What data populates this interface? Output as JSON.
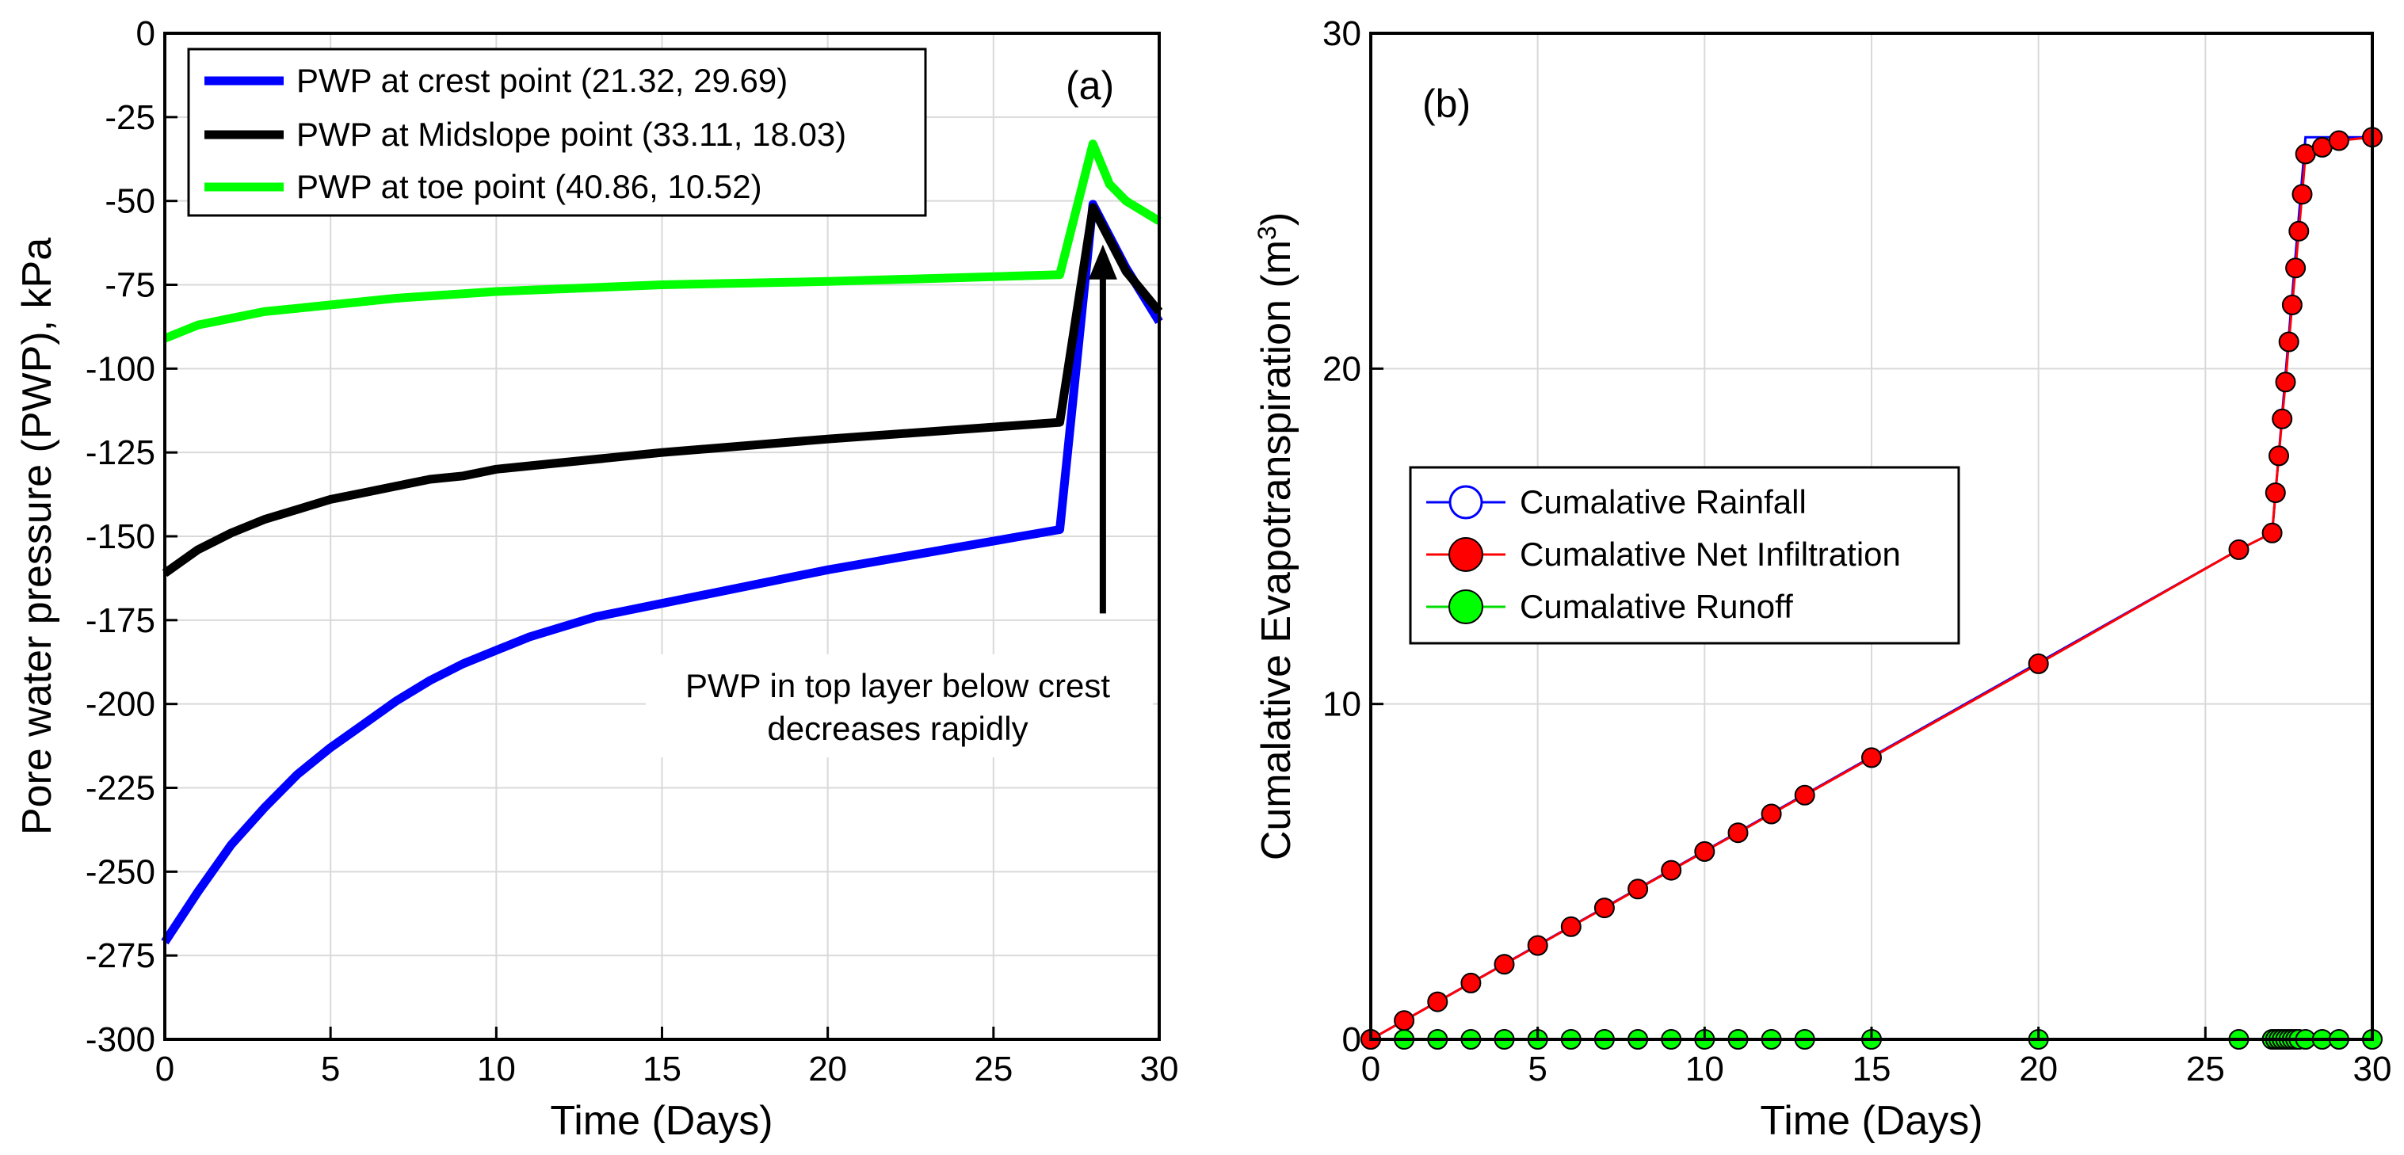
{
  "chart_data": [
    {
      "type": "line",
      "panel_label": "(a)",
      "xlabel": "Time (Days)",
      "ylabel": "Pore water pressure (PWP), kPa",
      "xlim": [
        0,
        30
      ],
      "ylim": [
        -300,
        0
      ],
      "xticks": [
        0,
        5,
        10,
        15,
        20,
        25,
        30
      ],
      "yticks": [
        0,
        -25,
        -50,
        -75,
        -100,
        -125,
        -150,
        -175,
        -200,
        -225,
        -250,
        -275,
        -300
      ],
      "grid": true,
      "legend_position": "top-left",
      "series": [
        {
          "name": "PWP at crest point (21.32, 29.69)",
          "color": "#0000ff",
          "x": [
            0,
            1,
            2,
            3,
            4,
            5,
            6,
            7,
            8,
            9,
            10,
            11,
            12,
            13,
            14,
            15,
            20,
            27,
            28,
            29,
            30
          ],
          "y": [
            -271,
            -256,
            -242,
            -231,
            -221,
            -213,
            -206,
            -199,
            -193,
            -188,
            -184,
            -180,
            -177,
            -174,
            -172,
            -170,
            -160,
            -148,
            -51,
            -70,
            -86
          ]
        },
        {
          "name": "PWP at Midslope point (33.11, 18.03)",
          "color": "#000000",
          "x": [
            0,
            1,
            2,
            3,
            4,
            5,
            6,
            7,
            8,
            9,
            10,
            12,
            15,
            20,
            27,
            28,
            29,
            30
          ],
          "y": [
            -161,
            -154,
            -149,
            -145,
            -142,
            -139,
            -137,
            -135,
            -133,
            -132,
            -130,
            -128,
            -125,
            -121,
            -116,
            -52,
            -71,
            -83
          ]
        },
        {
          "name": "PWP at toe point (40.86, 10.52)",
          "color": "#00ff00",
          "x": [
            0,
            1,
            2,
            3,
            5,
            7,
            10,
            15,
            20,
            27,
            28,
            28.5,
            29,
            30
          ],
          "y": [
            -91,
            -87,
            -85,
            -83,
            -81,
            -79,
            -77,
            -75,
            -74,
            -72,
            -33,
            -45,
            -50,
            -56
          ]
        }
      ],
      "annotation": {
        "lines": [
          "PWP in top layer below crest",
          "decreases rapidly"
        ],
        "arrow_from": [
          28.3,
          -173
        ],
        "arrow_to": [
          28.3,
          -63
        ]
      }
    },
    {
      "type": "line",
      "panel_label": "(b)",
      "xlabel": "Time (Days)",
      "ylabel_main": "Cumalative Evapotranspiration (m",
      "ylabel_sup": "3",
      "ylabel_close": ")",
      "xlim": [
        0,
        30
      ],
      "ylim": [
        0,
        30
      ],
      "xticks": [
        0,
        5,
        10,
        15,
        20,
        25,
        30
      ],
      "yticks": [
        0,
        10,
        20,
        30
      ],
      "grid": true,
      "legend_position": "center-left",
      "series": [
        {
          "name": "Cumalative Rainfall",
          "color": "#0000ff",
          "marker": "open-circle",
          "x": [
            0,
            26,
            27,
            27.5,
            28,
            30
          ],
          "y": [
            0,
            14.6,
            15.1,
            21,
            26.9,
            26.9
          ]
        },
        {
          "name": "Cumalative Net Infiltration",
          "color": "#ff0000",
          "marker": "filled-circle",
          "x": [
            0,
            1,
            2,
            3,
            4,
            5,
            6,
            7,
            8,
            9,
            10,
            11,
            12,
            13,
            15,
            20,
            26,
            27,
            27.1,
            27.2,
            27.3,
            27.4,
            27.5,
            27.6,
            27.7,
            27.8,
            27.9,
            28,
            28.5,
            29,
            30
          ],
          "y": [
            0,
            0.56,
            1.12,
            1.68,
            2.24,
            2.8,
            3.36,
            3.92,
            4.48,
            5.04,
            5.6,
            6.16,
            6.72,
            7.28,
            8.4,
            11.2,
            14.6,
            15.1,
            16.3,
            17.4,
            18.5,
            19.6,
            20.8,
            21.9,
            23.0,
            24.1,
            25.2,
            26.4,
            26.6,
            26.8,
            26.9
          ]
        },
        {
          "name": "Cumalative Runoff",
          "color": "#00dd00",
          "marker": "filled-circle",
          "x": [
            0,
            1,
            2,
            3,
            4,
            5,
            6,
            7,
            8,
            9,
            10,
            11,
            12,
            13,
            15,
            20,
            26,
            27,
            27.1,
            27.2,
            27.3,
            27.4,
            27.5,
            27.6,
            27.7,
            27.8,
            28,
            28.5,
            29,
            30
          ],
          "y": [
            0,
            0,
            0,
            0,
            0,
            0,
            0,
            0,
            0,
            0,
            0,
            0,
            0,
            0,
            0,
            0,
            0,
            0,
            0,
            0,
            0,
            0,
            0,
            0,
            0,
            0,
            0,
            0,
            0,
            0
          ]
        }
      ]
    }
  ]
}
